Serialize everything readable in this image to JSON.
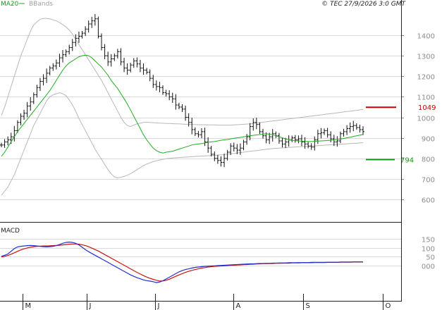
{
  "header": {
    "legend_ma": "MA20",
    "legend_bbands": "BBands",
    "stamp": "© TEC 27/9/2026 3:0 GMT"
  },
  "macd_panel": {
    "title": "MACD"
  },
  "colors": {
    "price_bars": "#111111",
    "ma20": "#22aa22",
    "bbands": "#b8b8b8",
    "resistance": "#cc0000",
    "support": "#119911",
    "macd_line": "#1f2fcc",
    "signal_line": "#cc1111",
    "grid": "#d9d9d9"
  },
  "chart_data": [
    {
      "type": "ohlc",
      "panel": "price",
      "ylim": [
        500,
        1500
      ],
      "yticks": [
        "1400",
        "1300",
        "1200",
        "1100",
        "1000",
        "900",
        "800",
        "700",
        "600"
      ],
      "x_labels": [
        "M",
        "J",
        "J",
        "A",
        "S",
        "O"
      ],
      "grid": true,
      "close": [
        865,
        880,
        890,
        905,
        935,
        975,
        1005,
        1020,
        1055,
        1075,
        1110,
        1145,
        1175,
        1190,
        1215,
        1240,
        1250,
        1265,
        1290,
        1305,
        1320,
        1340,
        1365,
        1385,
        1395,
        1410,
        1430,
        1455,
        1470,
        1480,
        1395,
        1340,
        1300,
        1270,
        1285,
        1300,
        1320,
        1270,
        1240,
        1230,
        1255,
        1275,
        1260,
        1240,
        1230,
        1220,
        1190,
        1160,
        1150,
        1145,
        1120,
        1115,
        1100,
        1090,
        1060,
        1050,
        1040,
        1000,
        975,
        940,
        920,
        915,
        930,
        880,
        850,
        820,
        800,
        790,
        780,
        800,
        830,
        860,
        850,
        840,
        850,
        880,
        905,
        955,
        975,
        965,
        930,
        910,
        890,
        905,
        920,
        910,
        885,
        870,
        880,
        890,
        900,
        890,
        895,
        880,
        870,
        860,
        855,
        890,
        920,
        925,
        935,
        915,
        895,
        880,
        885,
        920,
        930,
        945,
        955,
        960,
        950,
        940,
        930
      ],
      "ma20": [
        810,
        830,
        855,
        880,
        905,
        930,
        950,
        970,
        990,
        1010,
        1030,
        1050,
        1070,
        1090,
        1110,
        1130,
        1155,
        1180,
        1205,
        1230,
        1250,
        1265,
        1275,
        1285,
        1295,
        1300,
        1303,
        1300,
        1290,
        1275,
        1260,
        1245,
        1225,
        1205,
        1180,
        1160,
        1140,
        1115,
        1090,
        1065,
        1035,
        1005,
        975,
        945,
        915,
        890,
        870,
        850,
        838,
        830,
        826,
        830,
        832,
        835,
        840,
        845,
        850,
        855,
        860,
        865,
        868,
        870,
        872,
        875,
        878,
        880,
        882,
        885,
        888,
        890,
        892,
        895,
        898,
        900,
        902,
        905,
        908,
        910,
        912,
        914,
        916,
        918,
        920,
        918,
        915,
        910,
        905,
        900,
        895,
        890,
        888,
        886,
        885,
        884,
        883,
        882,
        882,
        883,
        884,
        885,
        886,
        887,
        888,
        890,
        892,
        894,
        897,
        900,
        903,
        907,
        910,
        913,
        916
      ],
      "bb_upper": [
        1010,
        1050,
        1100,
        1150,
        1200,
        1250,
        1300,
        1340,
        1380,
        1420,
        1450,
        1465,
        1478,
        1482,
        1482,
        1480,
        1475,
        1470,
        1462,
        1452,
        1440,
        1425,
        1405,
        1380,
        1355,
        1330,
        1305,
        1280,
        1255,
        1230,
        1205,
        1180,
        1150,
        1120,
        1090,
        1060,
        1030,
        1000,
        975,
        960,
        955,
        962,
        968,
        972,
        975,
        976,
        975,
        974,
        973,
        972,
        971,
        970,
        970,
        969,
        968,
        968,
        967,
        966,
        966,
        965,
        965,
        964,
        964,
        964,
        963,
        963,
        963,
        962,
        962,
        962,
        962,
        962,
        963,
        964,
        965,
        966,
        967,
        968,
        970,
        972,
        974,
        976,
        978,
        980,
        982,
        984,
        986,
        988,
        990,
        992,
        994,
        996,
        998,
        1000,
        1002,
        1004,
        1006,
        1008,
        1010,
        1012,
        1014,
        1016,
        1018,
        1020,
        1022,
        1024,
        1026,
        1028,
        1030,
        1032,
        1034,
        1036,
        1038
      ],
      "bb_lower": [
        620,
        640,
        660,
        690,
        720,
        760,
        800,
        840,
        880,
        920,
        960,
        990,
        1020,
        1050,
        1080,
        1100,
        1110,
        1115,
        1120,
        1115,
        1105,
        1085,
        1060,
        1030,
        995,
        965,
        935,
        905,
        875,
        845,
        820,
        795,
        770,
        745,
        725,
        710,
        705,
        708,
        712,
        718,
        725,
        735,
        745,
        755,
        765,
        772,
        778,
        784,
        788,
        792,
        795,
        798,
        800,
        802,
        803,
        804,
        805,
        806,
        807,
        808,
        809,
        810,
        811,
        812,
        813,
        814,
        815,
        816,
        817,
        818,
        820,
        822,
        824,
        826,
        828,
        830,
        832,
        834,
        836,
        838,
        840,
        842,
        844,
        846,
        848,
        849,
        850,
        851,
        852,
        853,
        854,
        855,
        856,
        857,
        858,
        859,
        860,
        861,
        862,
        863,
        864,
        865,
        866,
        867,
        868,
        869,
        870,
        871,
        872,
        873,
        874,
        875,
        876
      ],
      "levels": [
        {
          "name": "resistance",
          "value": 1049,
          "label": "1049"
        },
        {
          "name": "support",
          "value": 794,
          "label": "794"
        }
      ]
    },
    {
      "type": "line",
      "panel": "macd",
      "ylim": [
        -100,
        150
      ],
      "yticks": [
        "150",
        "100",
        "50",
        "000"
      ],
      "series": [
        {
          "key": "macd",
          "values": [
            52,
            58,
            65,
            80,
            95,
            105,
            108,
            110,
            112,
            113,
            112,
            110,
            108,
            106,
            105,
            106,
            108,
            112,
            118,
            125,
            130,
            132,
            130,
            125,
            116,
            103,
            90,
            78,
            68,
            58,
            48,
            38,
            28,
            18,
            8,
            -2,
            -12,
            -22,
            -32,
            -42,
            -52,
            -60,
            -68,
            -74,
            -80,
            -84,
            -87,
            -90,
            -95,
            -92,
            -85,
            -75,
            -65,
            -55,
            -45,
            -35,
            -28,
            -22,
            -18,
            -14,
            -10,
            -8,
            -6,
            -4,
            -3,
            -2,
            -1,
            0,
            1,
            2,
            3,
            4,
            5,
            6,
            7,
            8,
            9,
            10,
            10,
            11,
            12,
            12,
            13,
            13,
            14,
            14,
            15,
            15,
            15,
            16,
            16,
            16,
            17,
            17,
            17,
            17,
            18,
            18,
            18,
            18,
            18,
            19,
            19,
            19,
            19,
            20,
            20,
            20,
            20,
            21,
            21,
            21,
            21
          ]
        },
        {
          "key": "signal",
          "values": [
            48,
            52,
            57,
            64,
            72,
            80,
            88,
            94,
            99,
            103,
            106,
            108,
            109,
            110,
            110,
            111,
            112,
            113,
            114,
            116,
            118,
            120,
            121,
            121,
            120,
            117,
            112,
            106,
            98,
            90,
            82,
            72,
            62,
            52,
            42,
            32,
            22,
            12,
            2,
            -8,
            -18,
            -28,
            -38,
            -47,
            -56,
            -64,
            -71,
            -77,
            -82,
            -86,
            -86,
            -82,
            -76,
            -68,
            -60,
            -52,
            -45,
            -38,
            -32,
            -27,
            -22,
            -18,
            -14,
            -11,
            -8,
            -6,
            -4,
            -3,
            -2,
            -1,
            0,
            1,
            2,
            3,
            4,
            5,
            6,
            7,
            8,
            9,
            10,
            11,
            11,
            12,
            12,
            13,
            13,
            14,
            14,
            14,
            15,
            15,
            15,
            16,
            16,
            16,
            16,
            17,
            17,
            17,
            17,
            18,
            18,
            18,
            18,
            19,
            19,
            19,
            19,
            20,
            20,
            20,
            20
          ]
        }
      ]
    }
  ]
}
